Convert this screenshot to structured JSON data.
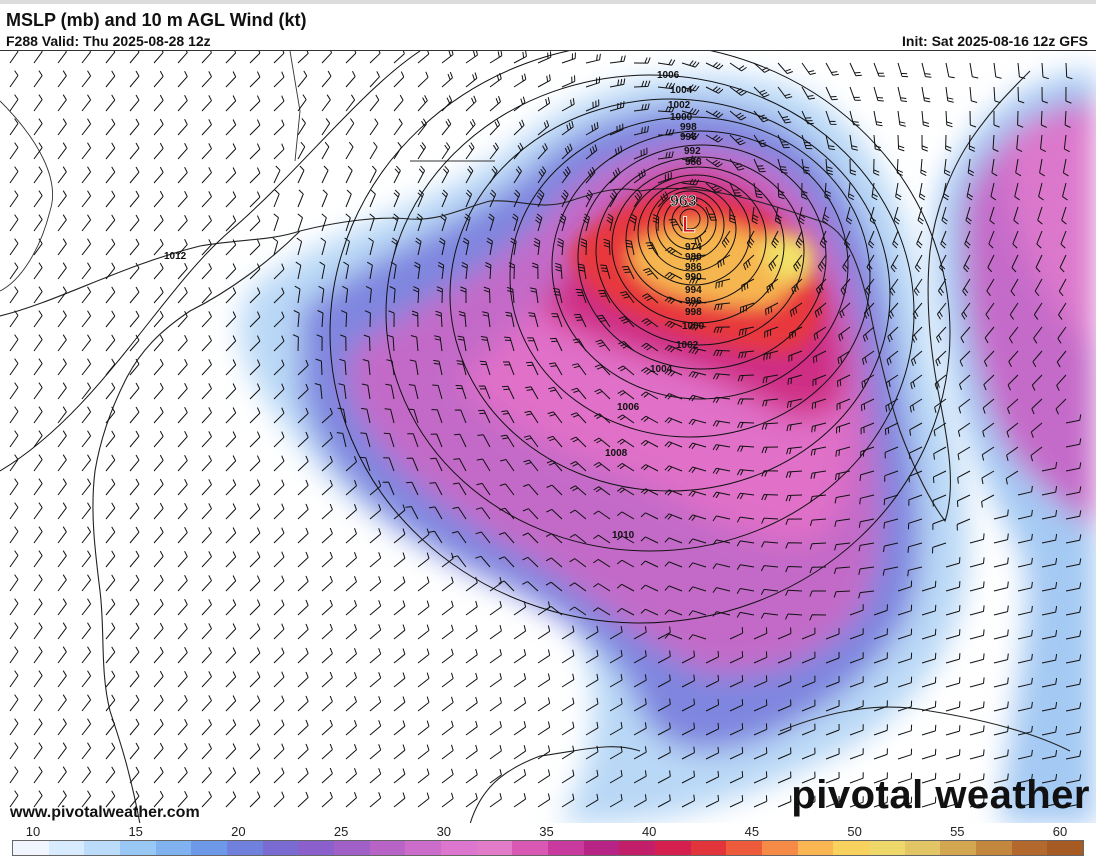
{
  "header": {
    "title": "MSLP (mb) and 10 m AGL Wind (kt)",
    "valid": "F288 Valid: Thu 2025-08-28 12z",
    "init": "Init: Sat 2025-08-16 12z GFS"
  },
  "map": {
    "low_label": "L",
    "low_pressure": "963",
    "isobar_labels": [
      "1006",
      "1004",
      "1002",
      "1000",
      "998",
      "996",
      "992",
      "988",
      "974",
      "980",
      "986",
      "990",
      "994",
      "996",
      "998",
      "1000",
      "1002",
      "1004",
      "1006",
      "1008",
      "1010",
      "1012"
    ]
  },
  "footer": {
    "website": "www.pivotalweather.com",
    "brand": "pivotal weather"
  },
  "colorbar": {
    "ticks": [
      "10",
      "15",
      "20",
      "25",
      "30",
      "35",
      "40",
      "45",
      "50",
      "55",
      "60"
    ],
    "colors": [
      "#f2f7ff",
      "#d8ebff",
      "#bcdcfb",
      "#99c8f4",
      "#7fb2ef",
      "#6e99e8",
      "#6f81dd",
      "#7a6bd3",
      "#8b5fcc",
      "#a060c8",
      "#b864c6",
      "#cc6ccb",
      "#dc76cf",
      "#e27bc8",
      "#d958b4",
      "#c83a9d",
      "#b72485",
      "#c21e6a",
      "#d41f4f",
      "#e2343b",
      "#ee5a3c",
      "#f68a47",
      "#f9b652",
      "#f7d25f",
      "#eed86a",
      "#e2c565",
      "#d3a651",
      "#c4873e",
      "#b3692d",
      "#a65a24"
    ]
  }
}
